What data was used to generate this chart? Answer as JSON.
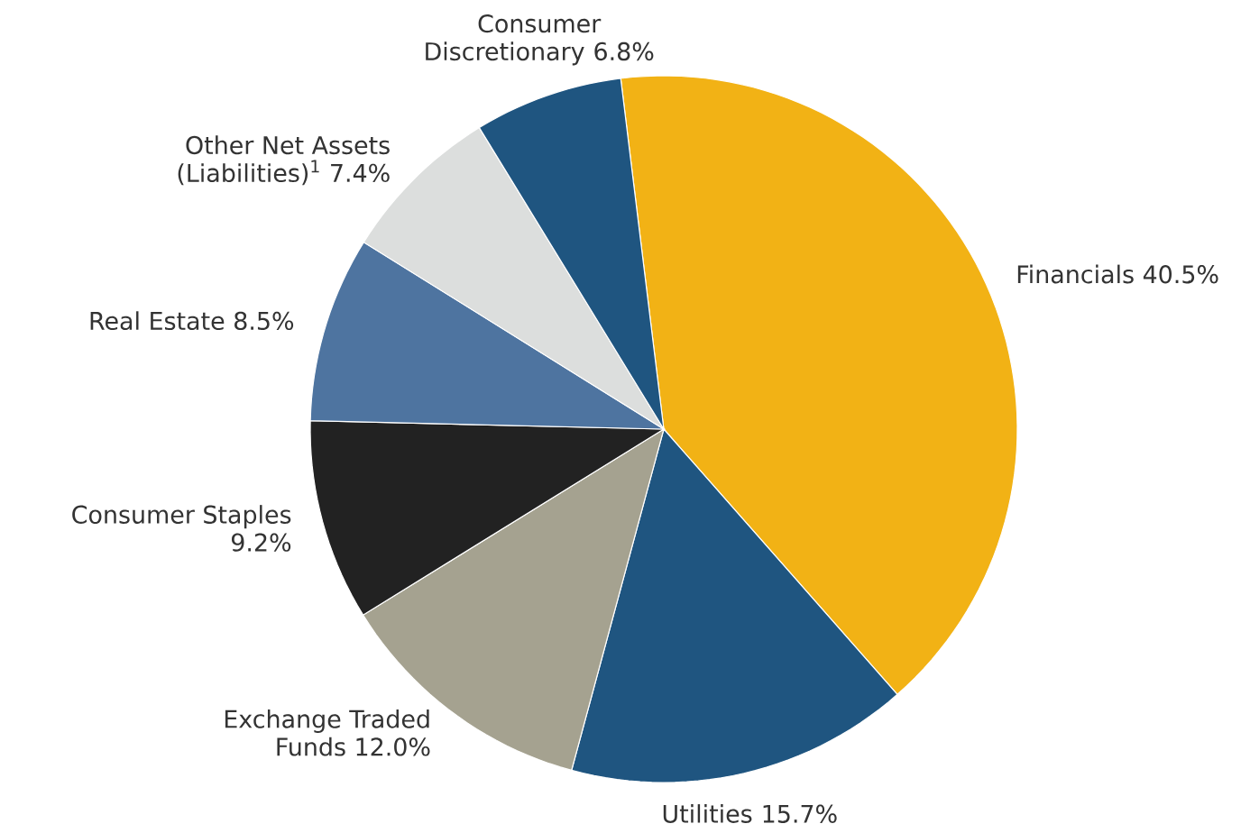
{
  "chart_data": {
    "type": "pie",
    "categories": [
      "Financials",
      "Utilities",
      "Exchange Traded Funds",
      "Consumer Staples",
      "Real Estate",
      "Other Net Assets (Liabilities)$^{1}$",
      "Consumer Discretionary"
    ],
    "values": [
      40.5,
      15.7,
      12.0,
      9.2,
      8.5,
      7.4,
      6.8
    ],
    "value_labels": [
      "40.5%",
      "15.7%",
      "12.0%",
      "9.2%",
      "8.5%",
      "7.4%",
      "6.8%"
    ],
    "colors": [
      "#f2b215",
      "#1f5580",
      "#a5a290",
      "#222222",
      "#4e74a0",
      "#dcdedd",
      "#1f5580"
    ]
  }
}
